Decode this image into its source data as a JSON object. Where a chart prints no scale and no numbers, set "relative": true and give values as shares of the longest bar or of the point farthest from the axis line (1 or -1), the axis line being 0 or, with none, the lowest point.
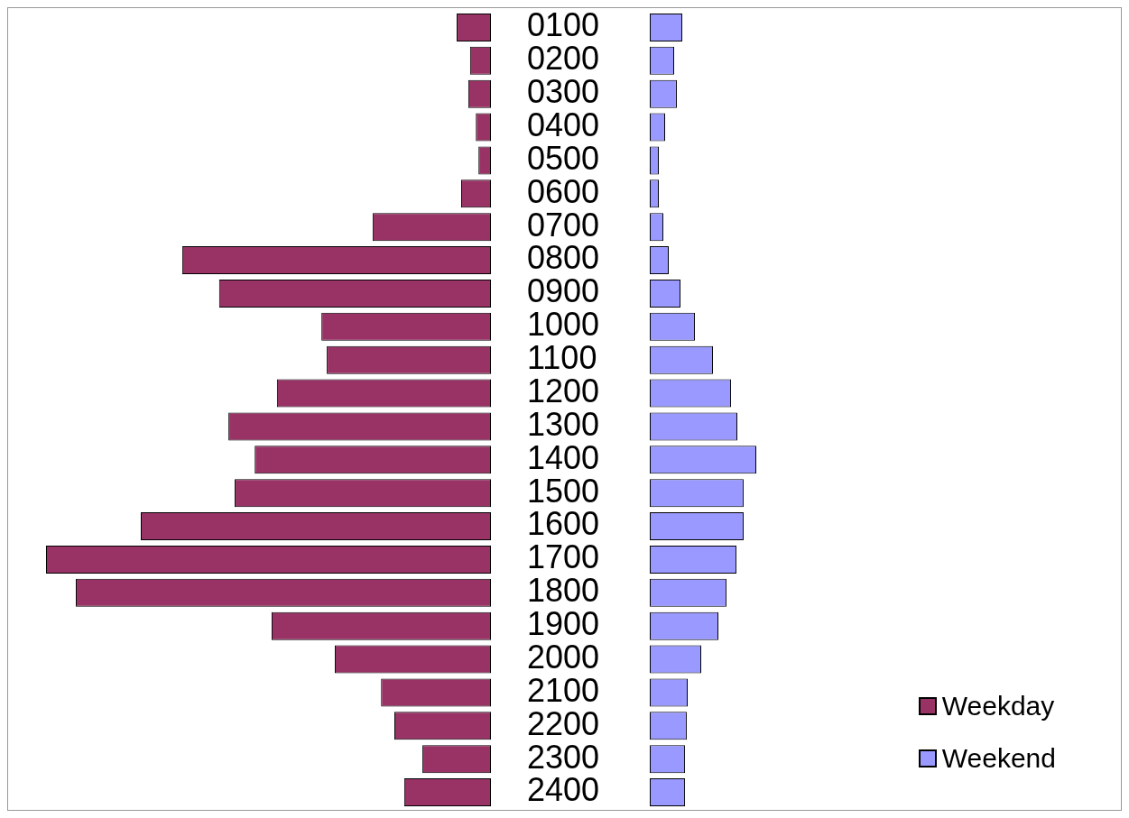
{
  "chart_data": [
    {
      "type": "bar",
      "orientation": "horizontal",
      "relative": true,
      "legend": "bottom right",
      "categories": [
        "0100",
        "0200",
        "0300",
        "0400",
        "0500",
        "0600",
        "0700",
        "0800",
        "0900",
        "1000",
        "1100",
        "1200",
        "1300",
        "1400",
        "1500",
        "1600",
        "1700",
        "1800",
        "1900",
        "2000",
        "2100",
        "2200",
        "2300",
        "2400"
      ],
      "series": [
        {
          "name": "Weekday",
          "color": "#993366",
          "values": [
            0.077,
            0.047,
            0.051,
            0.034,
            0.028,
            0.067,
            0.266,
            0.694,
            0.611,
            0.381,
            0.369,
            0.481,
            0.59,
            0.531,
            0.576,
            0.787,
            1,
            0.933,
            0.493,
            0.351,
            0.247,
            0.217,
            0.154,
            0.195
          ]
        }
      ]
    },
    {
      "type": "bar",
      "orientation": "horizontal",
      "relative": true,
      "legend": "bottom right",
      "tick_labels": false,
      "categories": [
        "0100",
        "0200",
        "0300",
        "0400",
        "0500",
        "0600",
        "0700",
        "0800",
        "0900",
        "1000",
        "1100",
        "1200",
        "1300",
        "1400",
        "1500",
        "1600",
        "1700",
        "1800",
        "1900",
        "2000",
        "2100",
        "2200",
        "2300",
        "2400"
      ],
      "series": [
        {
          "name": "Weekend",
          "color": "#9999ff",
          "values": [
            0.305,
            0.229,
            0.254,
            0.144,
            0.085,
            0.085,
            0.127,
            0.178,
            0.288,
            0.424,
            0.593,
            0.763,
            0.822,
            1,
            0.881,
            0.881,
            0.814,
            0.72,
            0.644,
            0.483,
            0.356,
            0.347,
            0.331,
            0.331
          ]
        }
      ]
    }
  ]
}
